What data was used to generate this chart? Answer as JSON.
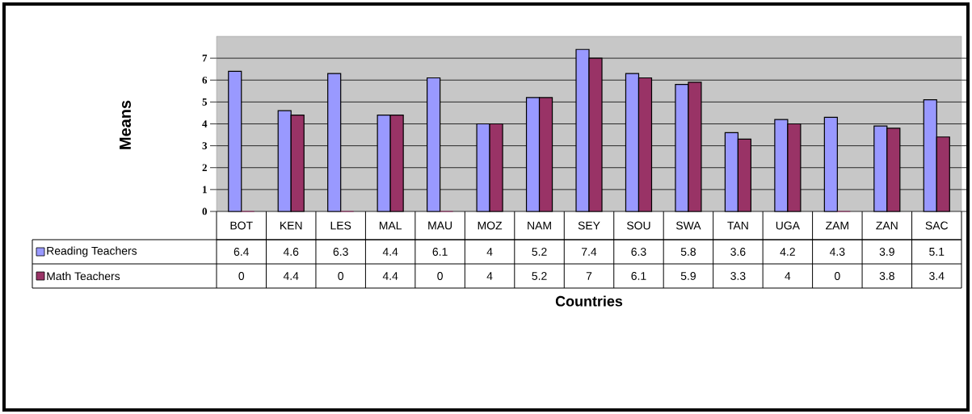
{
  "chart_data": {
    "type": "bar",
    "xlabel": "Countries",
    "ylabel": "Means",
    "categories": [
      "BOT",
      "KEN",
      "LES",
      "MAL",
      "MAU",
      "MOZ",
      "NAM",
      "SEY",
      "SOU",
      "SWA",
      "TAN",
      "UGA",
      "ZAM",
      "ZAN",
      "SAC"
    ],
    "series": [
      {
        "name": "Reading Teachers",
        "color": "#9999ff",
        "values": [
          6.4,
          4.6,
          6.3,
          4.4,
          6.1,
          4,
          5.2,
          7.4,
          6.3,
          5.8,
          3.6,
          4.2,
          4.3,
          3.9,
          5.1
        ]
      },
      {
        "name": "Math Teachers",
        "color": "#993366",
        "values": [
          0,
          4.4,
          0,
          4.4,
          0,
          4,
          5.2,
          7,
          6.1,
          5.9,
          3.3,
          4,
          0,
          3.8,
          3.4
        ]
      }
    ],
    "ylim": [
      0,
      8
    ],
    "yticks": [
      0,
      1,
      2,
      3,
      4,
      5,
      6,
      7
    ],
    "grid": "y",
    "legend": "bottom left",
    "data_labels": true
  }
}
